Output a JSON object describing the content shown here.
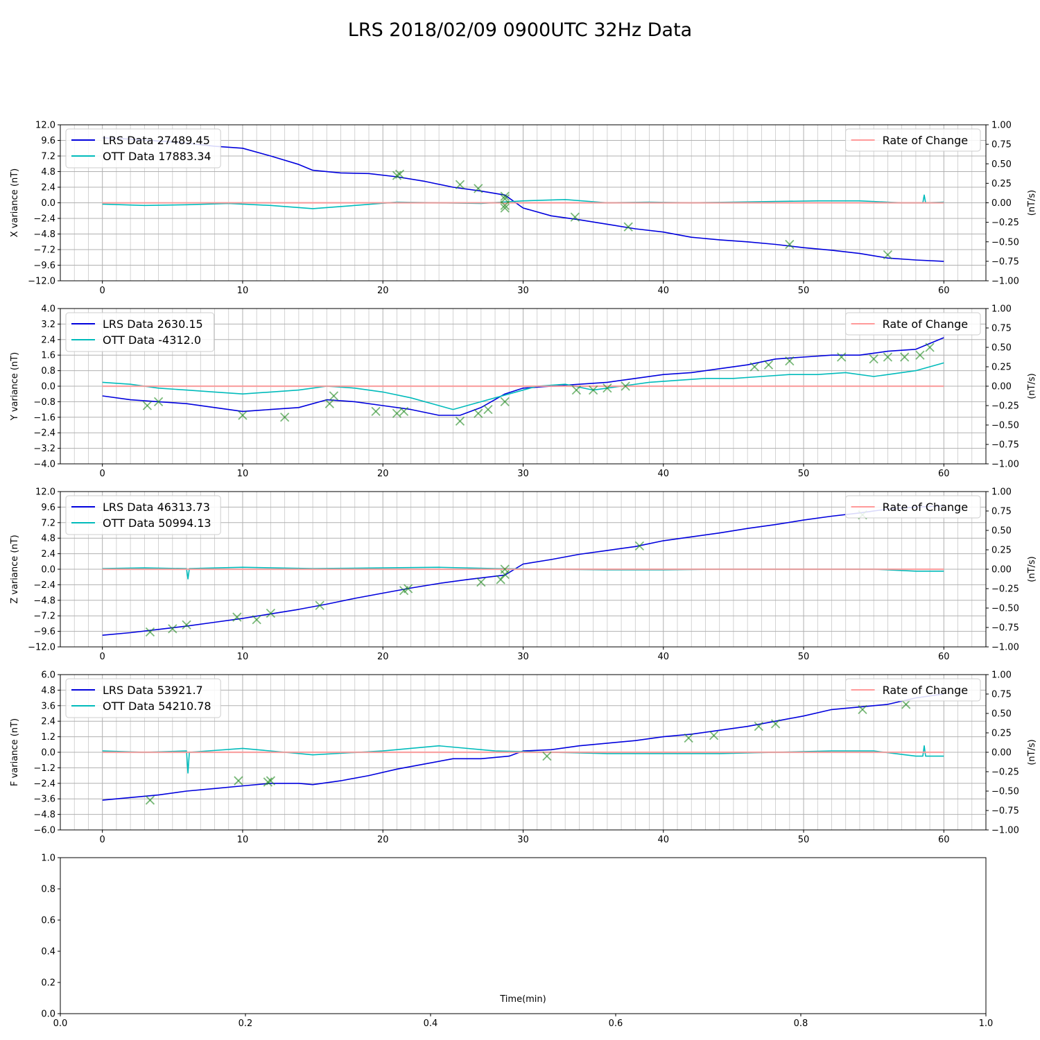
{
  "figure": {
    "title": "LRS 2018/02/09 0900UTC 32Hz Data"
  },
  "chart_data": [
    {
      "type": "line",
      "ylabel": "X variance (nT)",
      "ylabel_right": "(nT/s)",
      "xlim": [
        -3,
        63
      ],
      "ylim": [
        -12,
        12
      ],
      "ylim_right": [
        -1,
        1
      ],
      "x_ticks": [
        0,
        10,
        20,
        30,
        40,
        50,
        60
      ],
      "y_ticks": [
        -12,
        -9.6,
        -7.2,
        -4.8,
        -2.4,
        0,
        2.4,
        4.8,
        7.2,
        9.6,
        12
      ],
      "y_ticks_labels": [
        "−12.0",
        "−9.6",
        "−7.2",
        "−4.8",
        "−2.4",
        "0.0",
        "2.4",
        "4.8",
        "7.2",
        "9.6",
        "12.0"
      ],
      "y_ticks_right": [
        "−1.00",
        "−0.75",
        "−0.50",
        "−0.25",
        "0.00",
        "0.25",
        "0.50",
        "0.75",
        "1.00"
      ],
      "grid": true,
      "legend_left": [
        "LRS Data 27489.45",
        "OTT Data 17883.34"
      ],
      "legend_right": [
        "Rate of Change"
      ],
      "series": [
        {
          "role": "lrs",
          "color": "#0000dd",
          "x": [
            0,
            2,
            4,
            6,
            8,
            10,
            12,
            14,
            15,
            17,
            19,
            21,
            23,
            25,
            27,
            28.7,
            30,
            32,
            34,
            36,
            38,
            40,
            42,
            44,
            46,
            48,
            50,
            52,
            54,
            56,
            58,
            60
          ],
          "y": [
            10.0,
            9.8,
            9.5,
            9.2,
            8.7,
            8.4,
            7.2,
            5.9,
            5.0,
            4.6,
            4.5,
            4.0,
            3.3,
            2.4,
            1.8,
            1.2,
            -0.8,
            -2.0,
            -2.6,
            -3.3,
            -4.0,
            -4.5,
            -5.3,
            -5.7,
            -6.0,
            -6.4,
            -6.9,
            -7.3,
            -7.8,
            -8.5,
            -8.8,
            -9.0
          ]
        },
        {
          "role": "ott",
          "color": "#00bbbb",
          "x": [
            0,
            3,
            6,
            9,
            12,
            15,
            18,
            21,
            24,
            27,
            30,
            33,
            36,
            39,
            42,
            45,
            48,
            51,
            54,
            57,
            58.5,
            58.6,
            58.7,
            60
          ],
          "y": [
            -0.2,
            -0.4,
            -0.3,
            -0.1,
            -0.4,
            -0.9,
            -0.4,
            0.1,
            0.0,
            -0.1,
            0.3,
            0.5,
            0.0,
            0.1,
            0.0,
            0.1,
            0.2,
            0.3,
            0.3,
            0.0,
            0.0,
            1.2,
            0.0,
            0.1
          ]
        },
        {
          "role": "rate",
          "color": "#ff9999",
          "x": [
            0,
            10,
            20,
            28.5,
            28.7,
            28.9,
            30,
            40,
            50,
            60
          ],
          "y": [
            -0.01,
            0.0,
            0.0,
            0.0,
            -0.12,
            0.0,
            0.0,
            0.0,
            0.0,
            0.0
          ]
        }
      ],
      "markers": [
        {
          "x": 21,
          "y": 4.2
        },
        {
          "x": 21.2,
          "y": 4.4
        },
        {
          "x": 25.5,
          "y": 2.8
        },
        {
          "x": 26.8,
          "y": 2.2
        },
        {
          "x": 28.7,
          "y": 1.0
        },
        {
          "x": 28.7,
          "y": 0.6
        },
        {
          "x": 28.7,
          "y": -0.4
        },
        {
          "x": 28.7,
          "y": -0.8
        },
        {
          "x": 33.7,
          "y": -2.2
        },
        {
          "x": 37.5,
          "y": -3.7
        },
        {
          "x": 49,
          "y": -6.4
        },
        {
          "x": 56,
          "y": -8.0
        }
      ]
    },
    {
      "type": "line",
      "ylabel": "Y variance (nT)",
      "ylabel_right": "(nT/s)",
      "xlim": [
        -3,
        63
      ],
      "ylim": [
        -4,
        4
      ],
      "ylim_right": [
        -1,
        1
      ],
      "x_ticks": [
        0,
        10,
        20,
        30,
        40,
        50,
        60
      ],
      "y_ticks": [
        -4,
        -3.2,
        -2.4,
        -1.6,
        -0.8,
        0,
        0.8,
        1.6,
        2.4,
        3.2,
        4
      ],
      "y_ticks_labels": [
        "−4.0",
        "−3.2",
        "−2.4",
        "−1.6",
        "−0.8",
        "0.0",
        "0.8",
        "1.6",
        "2.4",
        "3.2",
        "4.0"
      ],
      "y_ticks_right": [
        "−1.00",
        "−0.75",
        "−0.50",
        "−0.25",
        "0.00",
        "0.25",
        "0.50",
        "0.75",
        "1.00"
      ],
      "grid": true,
      "legend_left": [
        "LRS Data 2630.15",
        "OTT Data -4312.0"
      ],
      "legend_right": [
        "Rate of Change"
      ],
      "series": [
        {
          "role": "lrs",
          "color": "#0000dd",
          "x": [
            0,
            2,
            4,
            6,
            8,
            10,
            12,
            14,
            16,
            18,
            20,
            22,
            24,
            25.5,
            27,
            28.7,
            30,
            32,
            34,
            36,
            38,
            40,
            42,
            44,
            46,
            48,
            50,
            52,
            54,
            56,
            58,
            60
          ],
          "y": [
            -0.5,
            -0.7,
            -0.8,
            -0.9,
            -1.1,
            -1.3,
            -1.2,
            -1.1,
            -0.7,
            -0.8,
            -1.0,
            -1.2,
            -1.5,
            -1.5,
            -1.1,
            -0.4,
            -0.1,
            0.0,
            0.1,
            0.2,
            0.4,
            0.6,
            0.7,
            0.9,
            1.1,
            1.4,
            1.5,
            1.6,
            1.6,
            1.8,
            1.9,
            2.5
          ]
        },
        {
          "role": "ott",
          "color": "#00bbbb",
          "x": [
            0,
            2,
            4,
            6,
            8,
            10,
            12,
            14,
            16,
            18,
            20,
            22,
            24,
            25,
            27,
            29,
            31,
            33,
            35,
            37,
            39,
            41,
            43,
            45,
            47,
            49,
            51,
            53,
            55,
            57,
            58,
            59,
            60
          ],
          "y": [
            0.2,
            0.1,
            -0.1,
            -0.2,
            -0.3,
            -0.4,
            -0.3,
            -0.2,
            0.0,
            -0.1,
            -0.3,
            -0.6,
            -1.0,
            -1.2,
            -0.8,
            -0.4,
            0.0,
            0.1,
            -0.2,
            0.0,
            0.2,
            0.3,
            0.4,
            0.4,
            0.5,
            0.6,
            0.6,
            0.7,
            0.5,
            0.7,
            0.8,
            1.0,
            1.2
          ]
        },
        {
          "role": "rate",
          "color": "#ff9999",
          "x": [
            0,
            10,
            20,
            30,
            40,
            50,
            60
          ],
          "y": [
            0.0,
            0.0,
            0.0,
            0.0,
            0.0,
            0.0,
            0.0
          ]
        }
      ],
      "markers": [
        {
          "x": 3.2,
          "y": -1.0
        },
        {
          "x": 4,
          "y": -0.8
        },
        {
          "x": 10,
          "y": -1.5
        },
        {
          "x": 13,
          "y": -1.6
        },
        {
          "x": 16.2,
          "y": -0.9
        },
        {
          "x": 16.5,
          "y": -0.5
        },
        {
          "x": 19.5,
          "y": -1.3
        },
        {
          "x": 21,
          "y": -1.4
        },
        {
          "x": 21.5,
          "y": -1.3
        },
        {
          "x": 25.5,
          "y": -1.8
        },
        {
          "x": 26.8,
          "y": -1.4
        },
        {
          "x": 27.5,
          "y": -1.2
        },
        {
          "x": 28.7,
          "y": -0.8
        },
        {
          "x": 33.8,
          "y": -0.2
        },
        {
          "x": 35,
          "y": -0.2
        },
        {
          "x": 36,
          "y": -0.1
        },
        {
          "x": 37.3,
          "y": 0.0
        },
        {
          "x": 46.5,
          "y": 1.0
        },
        {
          "x": 47.5,
          "y": 1.1
        },
        {
          "x": 49,
          "y": 1.3
        },
        {
          "x": 52.7,
          "y": 1.5
        },
        {
          "x": 55,
          "y": 1.4
        },
        {
          "x": 56,
          "y": 1.5
        },
        {
          "x": 57.2,
          "y": 1.5
        },
        {
          "x": 58.3,
          "y": 1.6
        },
        {
          "x": 59,
          "y": 2.0
        }
      ]
    },
    {
      "type": "line",
      "ylabel": "Z variance (nT)",
      "ylabel_right": "(nT/s)",
      "xlim": [
        -3,
        63
      ],
      "ylim": [
        -12,
        12
      ],
      "ylim_right": [
        -1,
        1
      ],
      "x_ticks": [
        0,
        10,
        20,
        30,
        40,
        50,
        60
      ],
      "y_ticks": [
        -12,
        -9.6,
        -7.2,
        -4.8,
        -2.4,
        0,
        2.4,
        4.8,
        7.2,
        9.6,
        12
      ],
      "y_ticks_labels": [
        "−12.0",
        "−9.6",
        "−7.2",
        "−4.8",
        "−2.4",
        "0.0",
        "2.4",
        "4.8",
        "7.2",
        "9.6",
        "12.0"
      ],
      "y_ticks_right": [
        "−1.00",
        "−0.75",
        "−0.50",
        "−0.25",
        "0.00",
        "0.25",
        "0.50",
        "0.75",
        "1.00"
      ],
      "grid": true,
      "legend_left": [
        "LRS Data 46313.73",
        "OTT Data 50994.13"
      ],
      "legend_right": [
        "Rate of Change"
      ],
      "series": [
        {
          "role": "lrs",
          "color": "#0000dd",
          "x": [
            0,
            2,
            4,
            6,
            8,
            10,
            12,
            14,
            16,
            18,
            20,
            22,
            24,
            26,
            28.7,
            30,
            32,
            34,
            36,
            38,
            40,
            42,
            44,
            46,
            48,
            50,
            52,
            54,
            56,
            58,
            60
          ],
          "y": [
            -10.2,
            -9.8,
            -9.3,
            -8.8,
            -8.2,
            -7.6,
            -6.9,
            -6.2,
            -5.4,
            -4.5,
            -3.7,
            -2.9,
            -2.2,
            -1.6,
            -0.9,
            0.8,
            1.5,
            2.3,
            2.9,
            3.5,
            4.4,
            5.0,
            5.6,
            6.3,
            6.9,
            7.6,
            8.2,
            8.7,
            9.3,
            9.6,
            9.8
          ]
        },
        {
          "role": "ott",
          "color": "#00bbbb",
          "x": [
            0,
            3,
            6,
            6.1,
            6.2,
            10,
            15,
            20,
            24,
            28,
            32,
            36,
            40,
            44,
            48,
            52,
            55,
            58,
            60
          ],
          "y": [
            0.1,
            0.2,
            0.1,
            -1.5,
            0.1,
            0.3,
            0.1,
            0.2,
            0.3,
            0.1,
            0.0,
            -0.1,
            -0.1,
            0.0,
            0.0,
            0.0,
            0.0,
            -0.3,
            -0.3
          ]
        },
        {
          "role": "rate",
          "color": "#ff9999",
          "x": [
            0,
            10,
            20,
            28.5,
            28.7,
            28.9,
            30,
            40,
            50,
            60
          ],
          "y": [
            0.0,
            0.0,
            0.0,
            0.0,
            0.1,
            0.0,
            0.0,
            0.0,
            0.0,
            0.0
          ]
        }
      ],
      "markers": [
        {
          "x": 3.4,
          "y": -9.7
        },
        {
          "x": 5,
          "y": -9.2
        },
        {
          "x": 6,
          "y": -8.6
        },
        {
          "x": 9.6,
          "y": -7.4
        },
        {
          "x": 11,
          "y": -7.8
        },
        {
          "x": 12,
          "y": -6.8
        },
        {
          "x": 15.5,
          "y": -5.6
        },
        {
          "x": 21.5,
          "y": -3.3
        },
        {
          "x": 21.8,
          "y": -3.0
        },
        {
          "x": 27,
          "y": -2.0
        },
        {
          "x": 28.4,
          "y": -1.6
        },
        {
          "x": 28.7,
          "y": 0.0
        },
        {
          "x": 28.7,
          "y": -0.8
        },
        {
          "x": 38.3,
          "y": 3.6
        },
        {
          "x": 54.2,
          "y": 8.4
        }
      ]
    },
    {
      "type": "line",
      "ylabel": "F variance (nT)",
      "ylabel_right": "(nT/s)",
      "xlim": [
        -3,
        63
      ],
      "ylim": [
        -6,
        6
      ],
      "ylim_right": [
        -1,
        1
      ],
      "x_ticks": [
        0,
        10,
        20,
        30,
        40,
        50,
        60
      ],
      "y_ticks": [
        -6,
        -4.8,
        -3.6,
        -2.4,
        -1.2,
        0,
        1.2,
        2.4,
        3.6,
        4.8,
        6
      ],
      "y_ticks_labels": [
        "−6.0",
        "−4.8",
        "−3.6",
        "−2.4",
        "−1.2",
        "0.0",
        "1.2",
        "2.4",
        "3.6",
        "4.8",
        "6.0"
      ],
      "y_ticks_right": [
        "−1.00",
        "−0.75",
        "−0.50",
        "−0.25",
        "0.00",
        "0.25",
        "0.50",
        "0.75",
        "1.00"
      ],
      "grid": true,
      "legend_left": [
        "LRS Data 53921.7",
        "OTT Data 54210.78"
      ],
      "legend_right": [
        "Rate of Change"
      ],
      "series": [
        {
          "role": "lrs",
          "color": "#0000dd",
          "x": [
            0,
            2,
            4,
            6,
            8,
            10,
            12,
            14,
            15,
            17,
            19,
            21,
            23,
            25,
            27,
            29,
            30,
            32,
            34,
            36,
            38,
            40,
            42,
            44,
            46,
            48,
            50,
            52,
            54,
            56,
            58,
            60
          ],
          "y": [
            -3.7,
            -3.5,
            -3.3,
            -3.0,
            -2.8,
            -2.6,
            -2.4,
            -2.4,
            -2.5,
            -2.2,
            -1.8,
            -1.3,
            -0.9,
            -0.5,
            -0.5,
            -0.3,
            0.1,
            0.2,
            0.5,
            0.7,
            0.9,
            1.2,
            1.4,
            1.7,
            2.0,
            2.4,
            2.8,
            3.3,
            3.5,
            3.7,
            4.2,
            4.5
          ]
        },
        {
          "role": "ott",
          "color": "#00bbbb",
          "x": [
            0,
            3,
            6,
            6.1,
            6.2,
            10,
            15,
            20,
            24,
            28,
            32,
            36,
            40,
            44,
            48,
            52,
            55,
            58,
            58.5,
            58.6,
            58.7,
            60
          ],
          "y": [
            0.1,
            0.0,
            0.1,
            -1.6,
            0.0,
            0.3,
            -0.2,
            0.1,
            0.5,
            0.1,
            0.0,
            -0.1,
            -0.1,
            -0.1,
            0.0,
            0.1,
            0.1,
            -0.3,
            -0.3,
            0.5,
            -0.3,
            -0.3
          ]
        },
        {
          "role": "rate",
          "color": "#ff9999",
          "x": [
            0,
            10,
            20,
            30,
            40,
            50,
            60
          ],
          "y": [
            0.0,
            0.0,
            0.0,
            0.0,
            0.0,
            0.0,
            0.0
          ]
        }
      ],
      "markers": [
        {
          "x": 3.4,
          "y": -3.7
        },
        {
          "x": 9.7,
          "y": -2.2
        },
        {
          "x": 11.8,
          "y": -2.3
        },
        {
          "x": 12,
          "y": -2.2
        },
        {
          "x": 31.7,
          "y": -0.3
        },
        {
          "x": 41.8,
          "y": 1.1
        },
        {
          "x": 43.6,
          "y": 1.3
        },
        {
          "x": 46.8,
          "y": 2.0
        },
        {
          "x": 48,
          "y": 2.2
        },
        {
          "x": 54.2,
          "y": 3.3
        },
        {
          "x": 57.3,
          "y": 3.7
        }
      ]
    },
    {
      "type": "line",
      "xlabel": "Time(min)",
      "xlim": [
        0,
        1
      ],
      "ylim": [
        0,
        1
      ],
      "x_ticks_labels": [
        "0.0",
        "0.2",
        "0.4",
        "0.6",
        "0.8",
        "1.0"
      ],
      "y_ticks_labels": [
        "0.0",
        "0.2",
        "0.4",
        "0.6",
        "0.8",
        "1.0"
      ],
      "grid": false,
      "series": []
    }
  ]
}
